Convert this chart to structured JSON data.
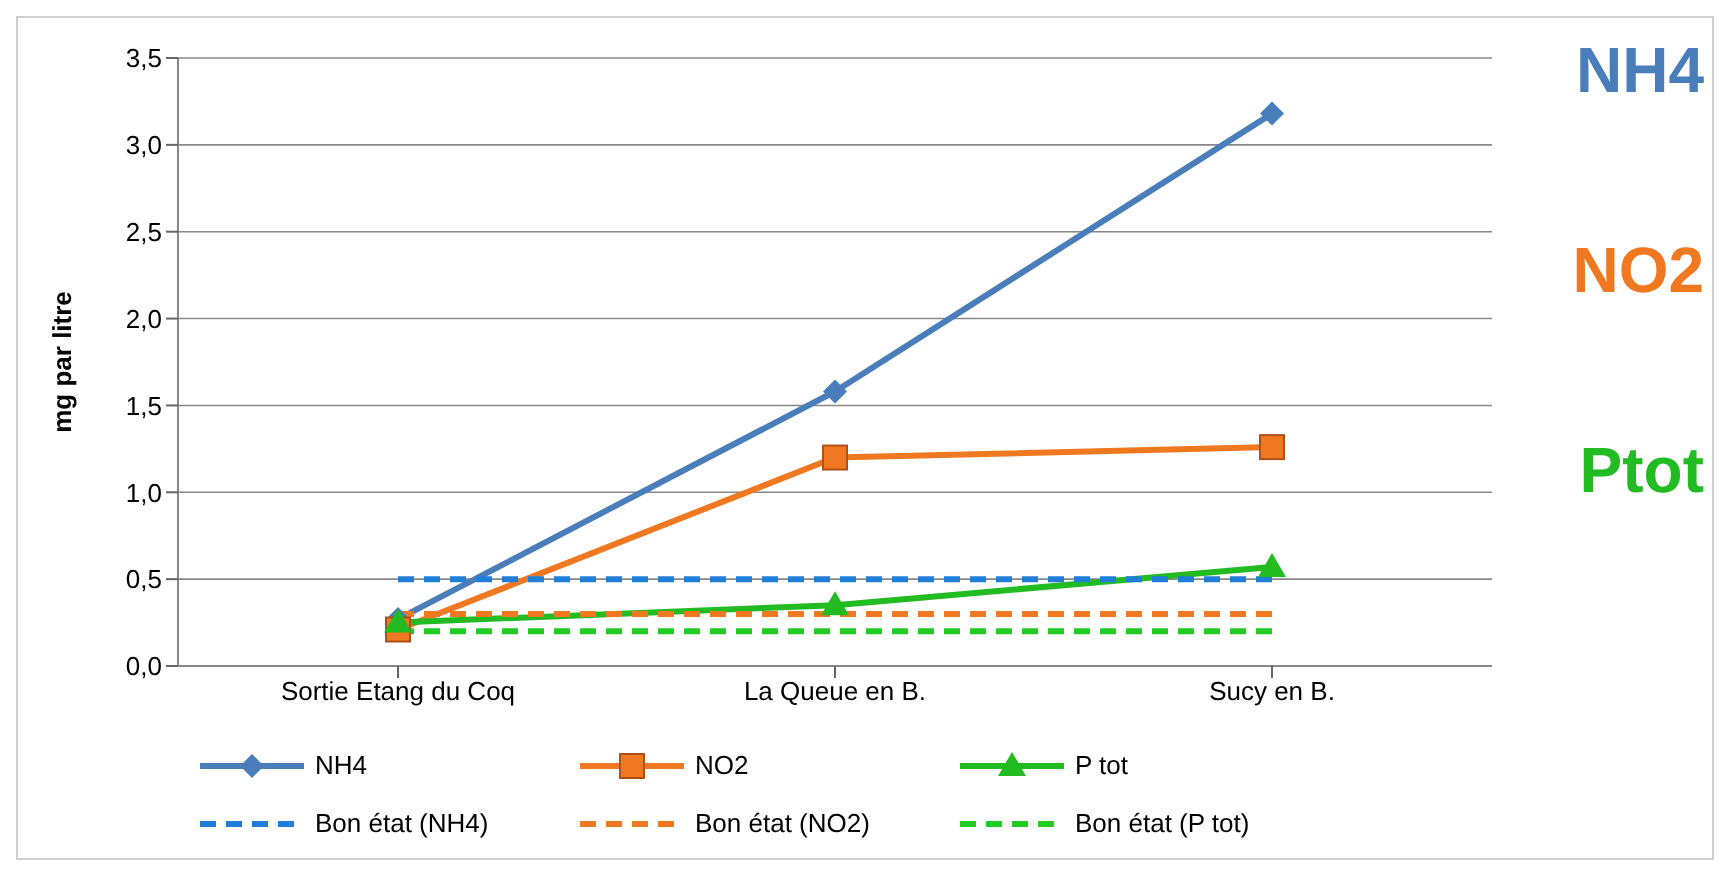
{
  "chart_data": {
    "type": "line",
    "ylabel": "mg par litre",
    "categories": [
      "Sortie Etang du Coq",
      "La Queue en B.",
      "Sucy en B."
    ],
    "series": [
      {
        "name": "NH4",
        "color": "#4a7ebb",
        "values": [
          0.27,
          1.58,
          3.18
        ],
        "marker": "diamond",
        "line_style": "solid"
      },
      {
        "name": "NO2",
        "color": "#f07820",
        "values": [
          0.21,
          1.2,
          1.26
        ],
        "marker": "square",
        "line_style": "solid"
      },
      {
        "name": "P tot",
        "color": "#22bb22",
        "values": [
          0.25,
          0.35,
          0.57
        ],
        "marker": "triangle",
        "line_style": "solid"
      },
      {
        "name": "Bon état (NH4)",
        "color": "#1f7fd8",
        "values": [
          0.5,
          0.5,
          0.5
        ],
        "marker": "none",
        "line_style": "dashed"
      },
      {
        "name": "Bon état (NO2)",
        "color": "#f07820",
        "values": [
          0.3,
          0.3,
          0.3
        ],
        "marker": "none",
        "line_style": "dashed"
      },
      {
        "name": "Bon état (P tot)",
        "color": "#22cc22",
        "values": [
          0.2,
          0.2,
          0.2
        ],
        "marker": "none",
        "line_style": "dashed"
      }
    ],
    "annotations": [
      "NH4",
      "NO2",
      "Ptot"
    ],
    "ylim": [
      0,
      3.5
    ],
    "yticks": [
      {
        "value": 0,
        "label": "0,0"
      },
      {
        "value": 0.5,
        "label": "0,5"
      },
      {
        "value": 1,
        "label": "1,0"
      },
      {
        "value": 1.5,
        "label": "1,5"
      },
      {
        "value": 2,
        "label": "2,0"
      },
      {
        "value": 2.5,
        "label": "2,5"
      },
      {
        "value": 3,
        "label": "3,0"
      },
      {
        "value": 3.5,
        "label": "3,5"
      }
    ],
    "grid": "y",
    "legend": "bottom"
  }
}
